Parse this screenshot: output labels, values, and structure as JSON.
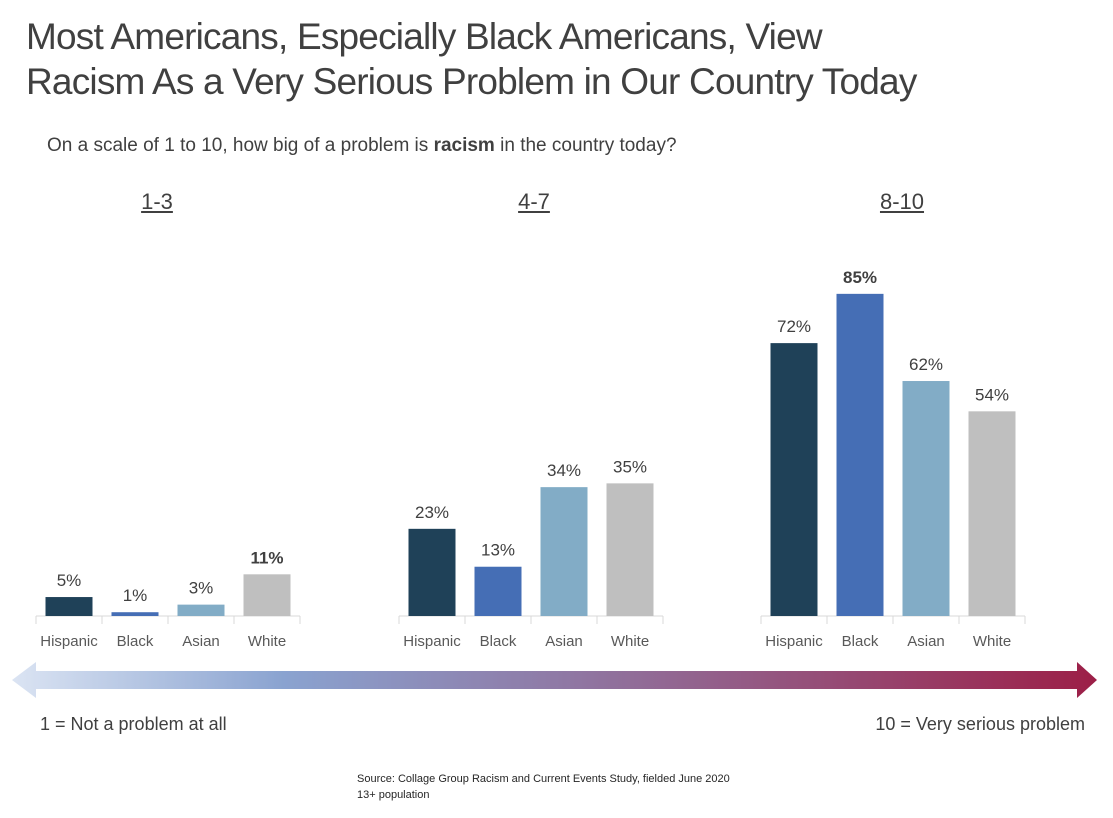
{
  "title_line1": "Most Americans, Especially Black Americans, View",
  "title_line2": "Racism As a Very Serious Problem in Our Country Today",
  "subtitle_pre": "On a scale of 1 to 10, how big of a problem is ",
  "subtitle_bold": "racism",
  "subtitle_post": " in the country today?",
  "scale": {
    "left_label": "1 = Not a problem at all",
    "right_label": "10 = Very serious problem"
  },
  "source": {
    "line1": "Source: Collage Group Racism and Current Events Study, fielded June 2020",
    "line2": "13+ population"
  },
  "colors": {
    "Hispanic": "#1f4158",
    "Black": "#456eb5",
    "Asian": "#82acc6",
    "White": "#bfbfbf",
    "gradient_start": "#dbe4f3",
    "gradient_end": "#9c1f47"
  },
  "chart_data": {
    "type": "bar",
    "title": "",
    "xlabel": "",
    "ylabel": "",
    "ylim": [
      0,
      100
    ],
    "categories": [
      "Hispanic",
      "Black",
      "Asian",
      "White"
    ],
    "groups": [
      {
        "label": "1-3",
        "values": [
          5,
          1,
          3,
          11
        ],
        "labels": [
          "5%",
          "1%",
          "3%",
          "11%"
        ],
        "bold_index": 3
      },
      {
        "label": "4-7",
        "values": [
          23,
          13,
          34,
          35
        ],
        "labels": [
          "23%",
          "13%",
          "34%",
          "35%"
        ],
        "bold_index": -1
      },
      {
        "label": "8-10",
        "values": [
          72,
          85,
          62,
          54
        ],
        "labels": [
          "72%",
          "85%",
          "62%",
          "54%"
        ],
        "bold_index": 1
      }
    ]
  }
}
